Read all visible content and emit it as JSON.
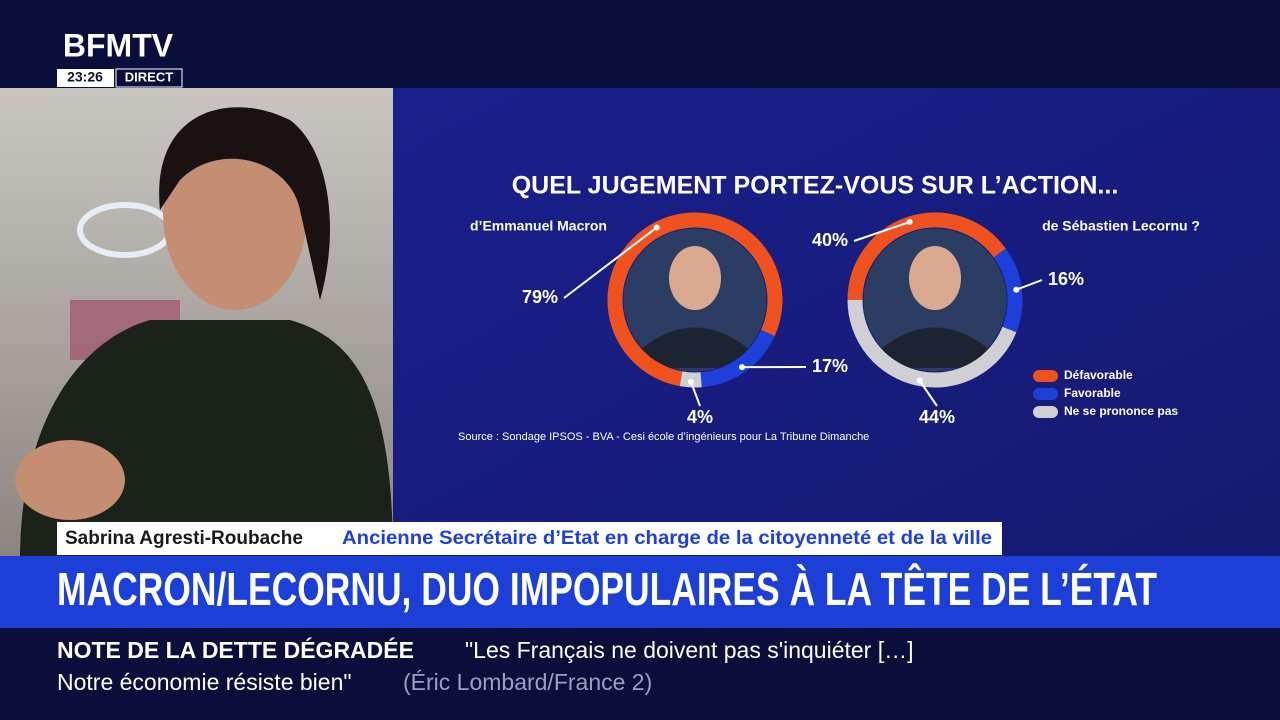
{
  "channel": {
    "logo": "BFMTV",
    "time": "23:26",
    "live": "DIRECT"
  },
  "chart_data": [
    {
      "type": "pie",
      "title": "QUEL JUGEMENT PORTEZ-VOUS SUR L’ACTION...",
      "subtitle": "d’Emmanuel Macron",
      "categories": [
        "Défavorable",
        "Favorable",
        "Ne se prononce pas"
      ],
      "values": [
        79,
        17,
        4
      ],
      "value_labels": [
        "79%",
        "17%",
        "4%"
      ],
      "colors": [
        "#f0521f",
        "#1e3fd9",
        "#cfcfd4"
      ],
      "legend": "bottom-right"
    },
    {
      "type": "pie",
      "subtitle": "de Sébastien Lecornu ?",
      "categories": [
        "Défavorable",
        "Favorable",
        "Ne se prononce pas"
      ],
      "values": [
        40,
        16,
        44
      ],
      "value_labels": [
        "40%",
        "16%",
        "44%"
      ],
      "colors": [
        "#f0521f",
        "#1e3fd9",
        "#cfcfd4"
      ]
    }
  ],
  "source": "Source : Sondage IPSOS - BVA - Cesi école d’ingénieurs pour La Tribune Dimanche",
  "guest": {
    "name": "Sabrina Agresti-Roubache",
    "role": "Ancienne Secrétaire d’Etat en charge de la citoyenneté et de la ville"
  },
  "headline": "MACRON/LECORNU, DUO IMPOPULAIRES À LA TÊTE DE L’ÉTAT",
  "ticker": {
    "topic": "NOTE DE LA DETTE DÉGRADÉE",
    "quote_line1": "\"Les Français ne doivent pas s'inquiéter […]",
    "quote_line2": "Notre économie résiste bien\"",
    "attribution": "(Éric Lombard/France 2)"
  }
}
